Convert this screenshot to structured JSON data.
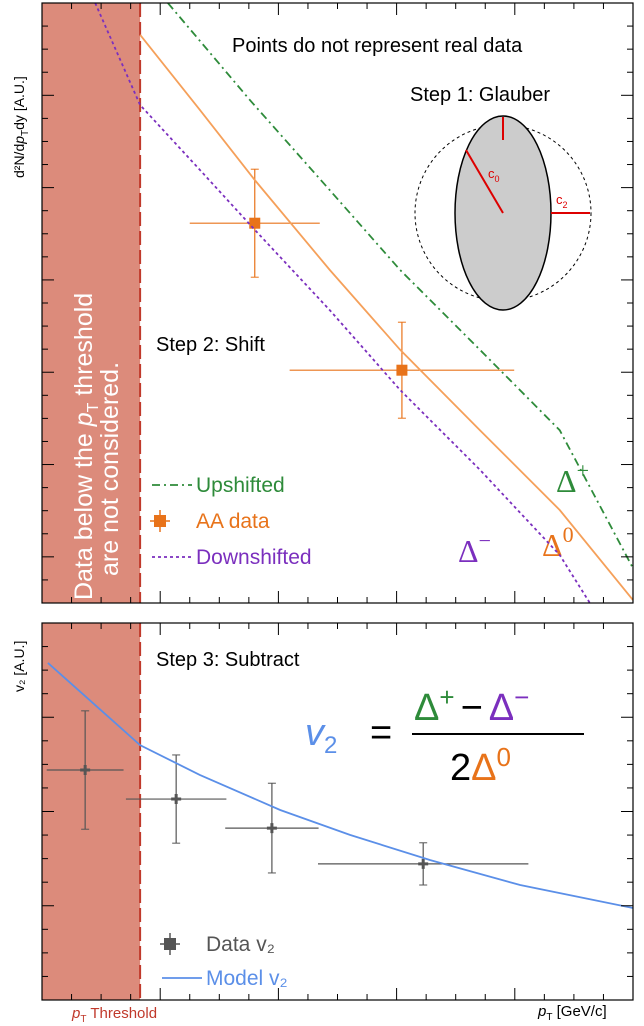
{
  "chart_data": [
    {
      "type": "line",
      "y_label": [
        "d²N/d",
        "p",
        "T",
        "dy [A.U.]"
      ],
      "annotations": {
        "disclaimer": "Points do not represent real data",
        "step1": "Step 1: Glauber",
        "c0": [
          "c",
          "0"
        ],
        "c2": [
          "c",
          "2"
        ],
        "step2": "Step 2: Shift",
        "threshold_note": [
          [
            "Data below the ",
            "p",
            "T",
            " threshold"
          ],
          "are not considered."
        ]
      },
      "threshold": 1.66,
      "band_color": "#dc8b7b",
      "threshold_color": "#c0392b",
      "xlim": [
        0,
        10
      ],
      "ylim": [
        0,
        10
      ],
      "series": [
        {
          "name": "Upshifted",
          "color": "#2e8b3a",
          "style": "dashdot",
          "tag": [
            "Δ",
            "+"
          ],
          "x": [
            2.13,
            3.52,
            4.87,
            6.06,
            7.41,
            8.76,
            10
          ],
          "values": [
            10,
            8.38,
            6.88,
            5.55,
            4.22,
            2.88,
            0.58
          ]
        },
        {
          "name": "AA data",
          "color": "#e8731a",
          "style": "points",
          "x": [
            3.6,
            6.09
          ],
          "values": [
            6.33,
            3.88
          ],
          "xerr": [
            1.1,
            1.9
          ],
          "yerr": [
            0.9,
            0.8
          ]
        },
        {
          "name": "Downshifted",
          "color": "#7b2fbe",
          "style": "dotted",
          "tag": [
            "Δ",
            "−"
          ],
          "x": [
            0.9,
            1.66,
            2.67,
            3.6,
            4.87,
            6.06,
            7.41,
            8.76,
            9.27
          ],
          "values": [
            10,
            8.3,
            7.22,
            6.22,
            4.88,
            3.55,
            2.22,
            0.8,
            0
          ]
        },
        {
          "color": "#f5a05a",
          "style": "solid",
          "tag": [
            "Δ",
            "0"
          ],
          "x": [
            1.66,
            2.67,
            3.6,
            4.87,
            6.06,
            7.41,
            8.76,
            10
          ],
          "values": [
            9.47,
            8.22,
            7.05,
            5.55,
            4.22,
            2.88,
            1.55,
            0.05
          ]
        }
      ]
    },
    {
      "type": "line",
      "y_label": "v₂ [A.U.]",
      "x_label": [
        "p",
        "T",
        " [GeV/c]"
      ],
      "threshold_label": [
        "p",
        "T",
        " Threshold"
      ],
      "annotations": {
        "step3": "Step 3: Subtract"
      },
      "formula": {
        "v": "v",
        "sub": "2",
        "eq": "=",
        "a": "Δ",
        "a_sup": "+",
        "minus": "−",
        "b": "Δ",
        "b_sup": "−",
        "coef": "2",
        "c": "Δ",
        "c_sup": "0"
      },
      "threshold": 1.66,
      "band_color": "#dc8b7b",
      "threshold_color": "#c0392b",
      "xlim": [
        0,
        10
      ],
      "ylim": [
        0,
        10
      ],
      "series": [
        {
          "name": "Data v₂",
          "color": "#555555",
          "style": "points",
          "x": [
            0.73,
            2.27,
            3.89,
            6.45
          ],
          "values": [
            6.1,
            5.33,
            4.56,
            3.61
          ],
          "xerr": [
            0.65,
            0.85,
            0.79,
            1.78
          ],
          "yerr": [
            1.57,
            1.17,
            1.19,
            0.56
          ]
        },
        {
          "name": "Model v₂",
          "color": "#5b8fe8",
          "style": "solid",
          "x": [
            0.1,
            1.66,
            2.67,
            4.03,
            5.21,
            6.57,
            8.09,
            10
          ],
          "values": [
            8.94,
            6.76,
            5.97,
            5.04,
            4.38,
            3.71,
            3.05,
            2.44
          ]
        }
      ]
    }
  ]
}
